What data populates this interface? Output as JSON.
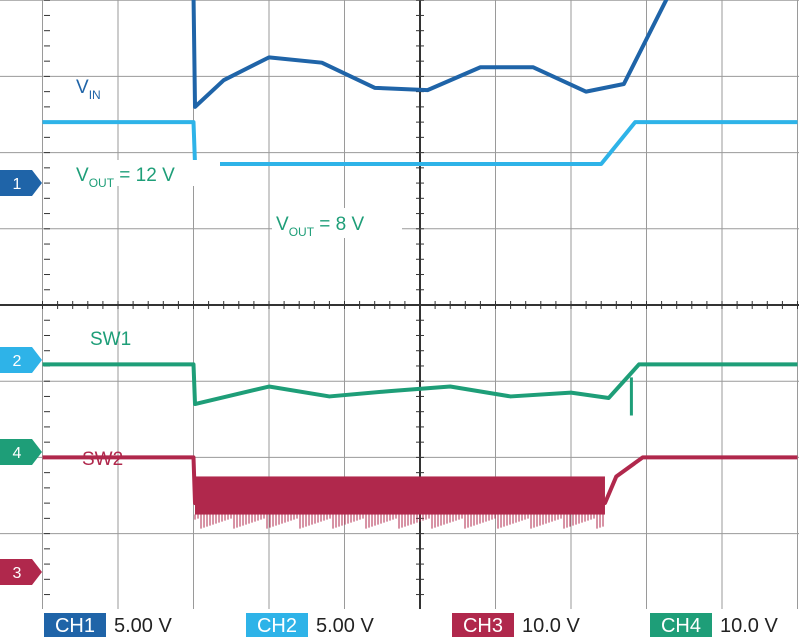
{
  "chart_data": {
    "type": "line",
    "title": "",
    "xlabel": "",
    "ylabel": "",
    "grid": true,
    "grid_divisions": {
      "x": 10,
      "y": 8
    },
    "channels": [
      {
        "id": "CH1",
        "tag": "1",
        "scale": "5.00 V",
        "color": "#1f64a8"
      },
      {
        "id": "CH2",
        "tag": "2",
        "scale": "5.00 V",
        "color": "#2eb3e8"
      },
      {
        "id": "CH3",
        "tag": "3",
        "scale": "10.0 V",
        "color": "#b0284c"
      },
      {
        "id": "CH4",
        "tag": "4",
        "scale": "10.0 V",
        "color": "#1e9e78"
      }
    ],
    "annotations": {
      "vin": {
        "main": "V",
        "sub": "IN",
        "rest": ""
      },
      "vout12": {
        "main": "V",
        "sub": "OUT",
        "rest": " = 12 V"
      },
      "vout8": {
        "main": "V",
        "sub": "OUT",
        "rest": " = 8 V"
      },
      "sw1": "SW1",
      "sw2": "SW2"
    },
    "traces": [
      {
        "name": "VIN",
        "channel": "CH1",
        "x_div": [
          0,
          2.0,
          2.02,
          2.4,
          3.0,
          3.7,
          4.4,
          5.1,
          5.8,
          6.5,
          7.2,
          7.7,
          8.3,
          10
        ],
        "y_div": [
          4.08,
          4.08,
          2.6,
          2.95,
          3.25,
          3.18,
          2.85,
          2.82,
          3.12,
          3.12,
          2.8,
          2.9,
          4.08,
          4.08
        ]
      },
      {
        "name": "VOUT",
        "channel": "CH2",
        "x_div": [
          0,
          2.0,
          2.02,
          7.4,
          7.85,
          10
        ],
        "y_div": [
          2.4,
          2.4,
          1.85,
          1.85,
          2.4,
          2.4
        ]
      },
      {
        "name": "SW1",
        "channel": "CH4",
        "x_div": [
          0,
          2.0,
          2.02,
          3.0,
          3.8,
          4.6,
          5.4,
          6.2,
          7.0,
          7.5,
          7.9,
          10
        ],
        "y_div": [
          -0.78,
          -0.78,
          -1.3,
          -1.07,
          -1.2,
          -1.13,
          -1.07,
          -1.2,
          -1.15,
          -1.22,
          -0.78,
          -0.78
        ]
      },
      {
        "name": "SW2",
        "channel": "CH3",
        "x_div": [
          0,
          2.0,
          2.02,
          7.45,
          7.6,
          7.95,
          10
        ],
        "y_div": [
          -2.0,
          -2.0,
          -2.6,
          -2.6,
          -2.25,
          -2.0,
          -2.0
        ],
        "switching_band_x_div": [
          2.02,
          7.45
        ],
        "switching_band_y_div": [
          -2.25,
          -2.75
        ]
      }
    ]
  }
}
